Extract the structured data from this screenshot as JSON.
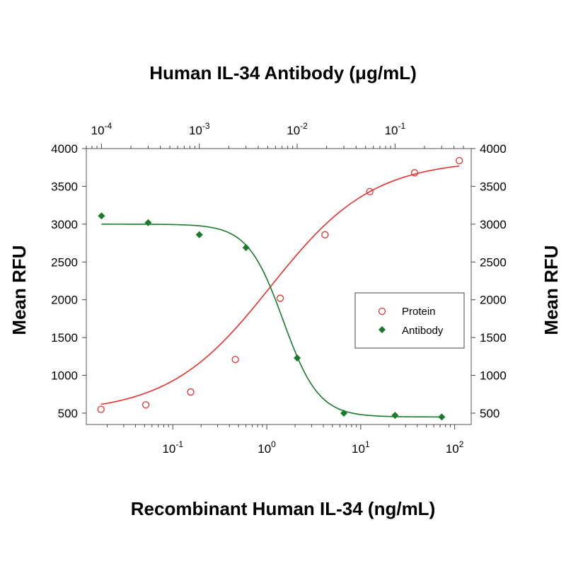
{
  "chart_data": {
    "type": "scatter",
    "title_top": "Human IL-34 Antibody (μg/mL)",
    "xlabel": "Recombinant Human IL-34 (ng/mL)",
    "ylabel_left": "Mean RFU",
    "ylabel_right": "Mean RFU",
    "x_bottom": {
      "scale": "log",
      "range": [
        0.012,
        150
      ],
      "ticks": [
        0.1,
        1,
        10,
        100
      ],
      "tick_base": "10",
      "tick_exponents": [
        "-1",
        "0",
        "1",
        "2"
      ]
    },
    "x_top": {
      "scale": "log",
      "range": [
        7e-05,
        0.6
      ],
      "ticks": [
        0.0001,
        0.001,
        0.01,
        0.1
      ],
      "tick_base": "10",
      "tick_exponents": [
        "-4",
        "-3",
        "-2",
        "-1"
      ]
    },
    "y": {
      "range": [
        350,
        4000
      ],
      "ticks": [
        500,
        1000,
        1500,
        2000,
        2500,
        3000,
        3500,
        4000
      ],
      "tick_labels": [
        "500",
        "1000",
        "1500",
        "2000",
        "2500",
        "3000",
        "3500",
        "4000"
      ]
    },
    "series": [
      {
        "name": "Protein",
        "axis": "bottom",
        "color": "#e8312f",
        "marker": "open-circle",
        "x": [
          0.0172,
          0.0516,
          0.155,
          0.463,
          1.39,
          4.17,
          12.5,
          37.5,
          112
        ],
        "y": [
          550,
          610,
          780,
          1210,
          2020,
          2860,
          3430,
          3680,
          3840
        ],
        "fit": {
          "bottom": 500,
          "top": 3850,
          "ec50": 1.1,
          "hill": 0.8
        }
      },
      {
        "name": "Antibody",
        "axis": "top",
        "color": "#1a7a2c",
        "marker": "filled-diamond",
        "x": [
          0.0001,
          0.0003,
          0.001,
          0.003,
          0.01,
          0.03,
          0.1,
          0.3
        ],
        "y": [
          3110,
          3020,
          2860,
          2690,
          1230,
          500,
          470,
          450
        ],
        "fit": {
          "bottom": 450,
          "top": 3000,
          "ic50": 0.0072,
          "hill": 2.4
        }
      }
    ],
    "legend": {
      "position": "center-right",
      "entries": [
        "Protein",
        "Antibody"
      ]
    },
    "grid": false
  }
}
